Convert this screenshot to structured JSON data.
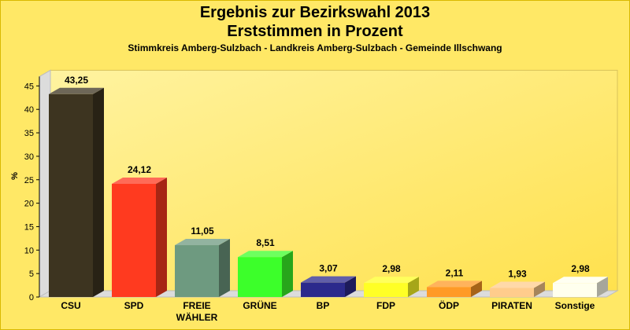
{
  "chart_data": {
    "type": "bar",
    "title": "Ergebnis zur Bezirkswahl 2013",
    "title_line2": "Erststimmen in Prozent",
    "subtitle": "Stimmkreis Amberg-Sulzbach - Landkreis Amberg-Sulzbach - Gemeinde Illschwang",
    "ylabel": "%",
    "xlabel": "",
    "ylim": [
      0,
      47
    ],
    "yticks": [
      0,
      5,
      10,
      15,
      20,
      25,
      30,
      35,
      40,
      45
    ],
    "grid": false,
    "categories": [
      "CSU",
      "SPD",
      "FREIE WÄHLER",
      "GRÜNE",
      "BP",
      "FDP",
      "ÖDP",
      "PIRATEN",
      "Sonstige"
    ],
    "category_lines": [
      [
        "CSU"
      ],
      [
        "SPD"
      ],
      [
        "FREIE",
        "WÄHLER"
      ],
      [
        "GRÜNE"
      ],
      [
        "BP"
      ],
      [
        "FDP"
      ],
      [
        "ÖDP"
      ],
      [
        "PIRATEN"
      ],
      [
        "Sonstige"
      ]
    ],
    "values": [
      43.25,
      24.12,
      11.05,
      8.51,
      3.07,
      2.98,
      2.11,
      1.93,
      2.98
    ],
    "value_labels": [
      "43,25",
      "24,12",
      "11,05",
      "8,51",
      "3,07",
      "2,98",
      "2,11",
      "1,93",
      "2,98"
    ],
    "colors": [
      "#3d3420",
      "#ff3a1f",
      "#6e9a80",
      "#3cff2a",
      "#2c2a8c",
      "#ffff26",
      "#ff9a26",
      "#ffcc8c",
      "#ffffee"
    ]
  }
}
